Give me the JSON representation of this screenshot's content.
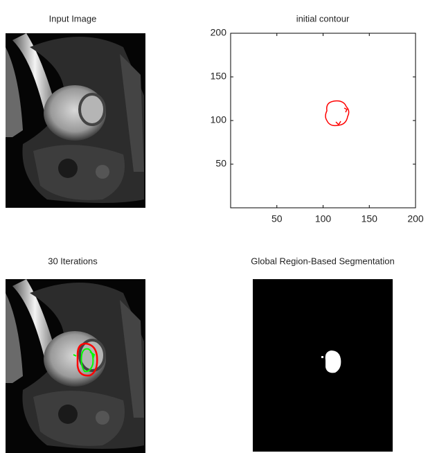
{
  "panels": [
    {
      "title": "Input Image"
    },
    {
      "title": "initial contour",
      "xlim": [
        0,
        200
      ],
      "ylim": [
        0,
        200
      ],
      "xticks": [
        50,
        100,
        150,
        200
      ],
      "yticks": [
        50,
        100,
        150,
        200
      ]
    },
    {
      "title": "30 Iterations"
    },
    {
      "title": "Global Region-Based Segmentation"
    }
  ]
}
